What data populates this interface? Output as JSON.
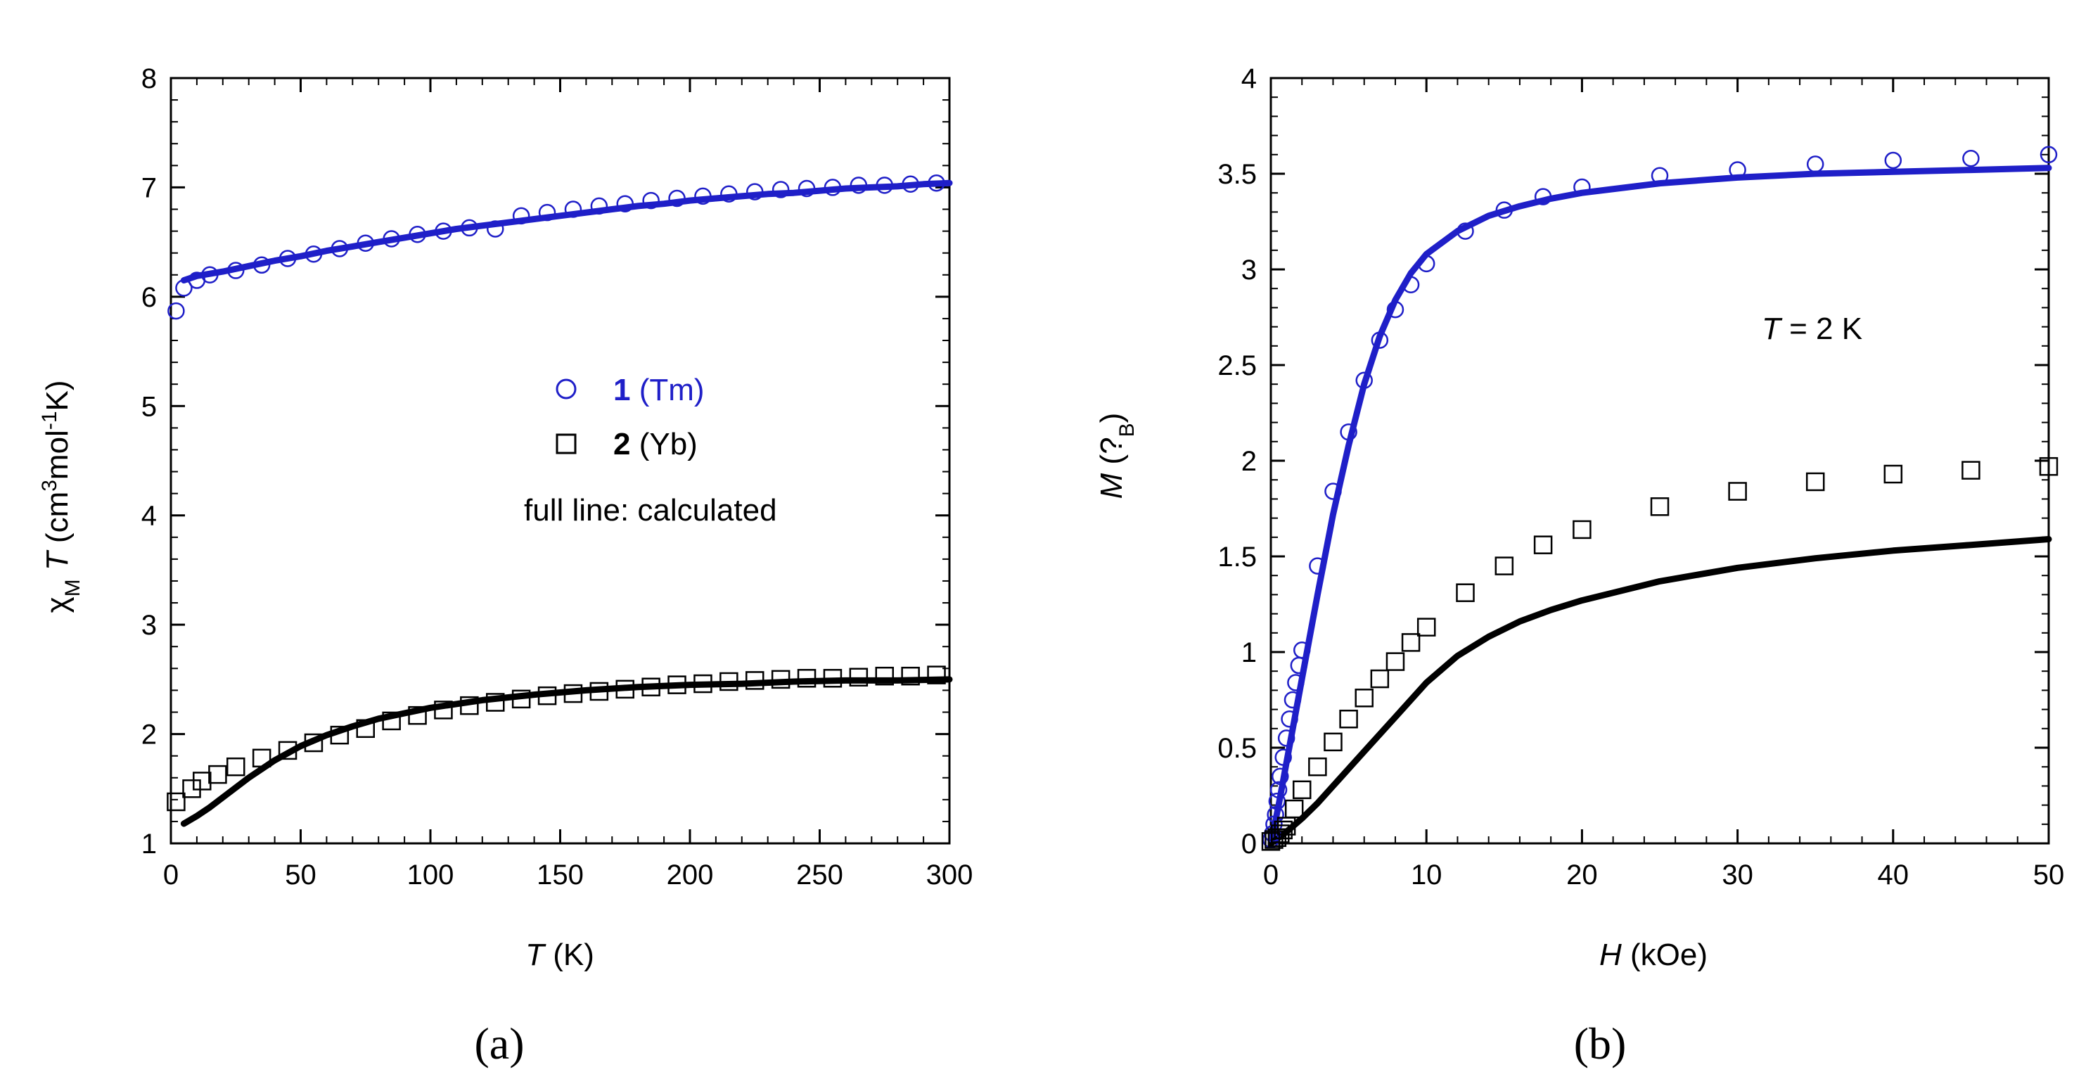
{
  "colors": {
    "tm": "#1f1fc8",
    "yb": "#000000"
  },
  "chart_data": [
    {
      "type": "scatter",
      "panel": "(a)",
      "xlabel": {
        "var": "T",
        "unit": " (K)"
      },
      "ylabel": {
        "prefix": "χ",
        "sub": "M",
        "var": " T",
        "unit_a": " (cm",
        "sup1": "3",
        "unit_b": "mol",
        "sup2": "-1",
        "unit_c": "K)"
      },
      "xlim": [
        0,
        300
      ],
      "ylim": [
        1,
        8
      ],
      "xticks": [
        0,
        50,
        100,
        150,
        200,
        250,
        300
      ],
      "yticks": [
        1,
        2,
        3,
        4,
        5,
        6,
        7,
        8
      ],
      "legend": {
        "entries": [
          {
            "num": "1",
            "text": " (Tm)",
            "marker": "circle",
            "series": "tm"
          },
          {
            "num": "2",
            "text": " (Yb)",
            "marker": "square",
            "series": "yb"
          }
        ],
        "note": "full line: calculated"
      },
      "series": [
        {
          "name": "1 (Tm) experimental",
          "color_key": "tm",
          "marker": "circle",
          "x": [
            2,
            5,
            10,
            15,
            25,
            35,
            45,
            55,
            65,
            75,
            85,
            95,
            105,
            115,
            125,
            135,
            145,
            155,
            165,
            175,
            185,
            195,
            205,
            215,
            225,
            235,
            245,
            255,
            265,
            275,
            285,
            295
          ],
          "y": [
            5.87,
            6.08,
            6.15,
            6.2,
            6.24,
            6.29,
            6.35,
            6.39,
            6.44,
            6.49,
            6.53,
            6.57,
            6.6,
            6.63,
            6.62,
            6.74,
            6.77,
            6.8,
            6.83,
            6.85,
            6.88,
            6.9,
            6.92,
            6.94,
            6.96,
            6.98,
            6.99,
            7.0,
            7.02,
            7.02,
            7.03,
            7.04
          ]
        },
        {
          "name": "1 (Tm) calculated",
          "color_key": "tm",
          "marker": "line",
          "x": [
            5,
            10,
            20,
            30,
            40,
            50,
            60,
            70,
            80,
            90,
            100,
            110,
            120,
            130,
            140,
            150,
            160,
            170,
            180,
            190,
            200,
            210,
            220,
            230,
            240,
            250,
            260,
            270,
            280,
            290,
            300
          ],
          "y": [
            6.15,
            6.19,
            6.23,
            6.28,
            6.33,
            6.37,
            6.42,
            6.46,
            6.5,
            6.54,
            6.58,
            6.62,
            6.65,
            6.68,
            6.71,
            6.74,
            6.77,
            6.8,
            6.83,
            6.85,
            6.88,
            6.9,
            6.92,
            6.94,
            6.95,
            6.97,
            6.99,
            7.0,
            7.01,
            7.03,
            7.04
          ]
        },
        {
          "name": "2 (Yb) experimental",
          "color_key": "yb",
          "marker": "square",
          "x": [
            2,
            8,
            12,
            18,
            25,
            35,
            45,
            55,
            65,
            75,
            85,
            95,
            105,
            115,
            125,
            135,
            145,
            155,
            165,
            175,
            185,
            195,
            205,
            215,
            225,
            235,
            245,
            255,
            265,
            275,
            285,
            295
          ],
          "y": [
            1.38,
            1.5,
            1.57,
            1.63,
            1.7,
            1.78,
            1.85,
            1.92,
            1.99,
            2.05,
            2.12,
            2.17,
            2.22,
            2.26,
            2.29,
            2.32,
            2.35,
            2.37,
            2.39,
            2.41,
            2.43,
            2.45,
            2.46,
            2.48,
            2.49,
            2.5,
            2.51,
            2.51,
            2.52,
            2.53,
            2.53,
            2.54
          ]
        },
        {
          "name": "2 (Yb) calculated",
          "color_key": "yb",
          "marker": "line",
          "x": [
            5,
            10,
            15,
            20,
            30,
            40,
            50,
            60,
            70,
            80,
            90,
            100,
            120,
            140,
            160,
            180,
            200,
            220,
            240,
            260,
            280,
            300
          ],
          "y": [
            1.18,
            1.25,
            1.33,
            1.42,
            1.6,
            1.76,
            1.89,
            1.99,
            2.07,
            2.14,
            2.19,
            2.24,
            2.31,
            2.36,
            2.4,
            2.43,
            2.45,
            2.46,
            2.48,
            2.49,
            2.49,
            2.5
          ]
        }
      ]
    },
    {
      "type": "scatter",
      "panel": "(b)",
      "xlabel": {
        "var": "H",
        "unit": " (kOe)"
      },
      "ylabel": {
        "var": "M",
        "unit_a": " (?",
        "sub": "B",
        "unit_b": ")"
      },
      "annotation": {
        "var": "T",
        "text": " = 2 K"
      },
      "xlim": [
        0,
        50
      ],
      "ylim": [
        0,
        4
      ],
      "xticks": [
        0,
        10,
        20,
        30,
        40,
        50
      ],
      "yticks": [
        0,
        0.5,
        1,
        1.5,
        2,
        2.5,
        3,
        3.5,
        4
      ],
      "series": [
        {
          "name": "1 (Tm) experimental",
          "color_key": "tm",
          "marker": "circle",
          "x": [
            0,
            0.1,
            0.2,
            0.3,
            0.4,
            0.5,
            0.6,
            0.8,
            1.0,
            1.2,
            1.4,
            1.6,
            1.8,
            2.0,
            3,
            4,
            5,
            6,
            7,
            8,
            9,
            10,
            12.5,
            15,
            17.5,
            20,
            25,
            30,
            35,
            40,
            45,
            50
          ],
          "y": [
            0.02,
            0.05,
            0.1,
            0.15,
            0.22,
            0.28,
            0.35,
            0.45,
            0.55,
            0.65,
            0.75,
            0.84,
            0.93,
            1.01,
            1.45,
            1.84,
            2.15,
            2.42,
            2.63,
            2.79,
            2.92,
            3.03,
            3.2,
            3.31,
            3.38,
            3.43,
            3.49,
            3.52,
            3.55,
            3.57,
            3.58,
            3.6
          ]
        },
        {
          "name": "1 (Tm) calculated",
          "color_key": "tm",
          "marker": "line",
          "x": [
            0,
            0.5,
            1,
            1.5,
            2,
            3,
            4,
            5,
            6,
            7,
            8,
            9,
            10,
            12,
            14,
            16,
            18,
            20,
            25,
            30,
            35,
            40,
            45,
            50
          ],
          "y": [
            0,
            0.2,
            0.42,
            0.64,
            0.86,
            1.3,
            1.72,
            2.08,
            2.4,
            2.65,
            2.84,
            2.98,
            3.08,
            3.2,
            3.28,
            3.33,
            3.37,
            3.4,
            3.45,
            3.48,
            3.5,
            3.51,
            3.52,
            3.53
          ]
        },
        {
          "name": "2 (Yb) experimental",
          "color_key": "yb",
          "marker": "square",
          "x": [
            0,
            0.2,
            0.4,
            0.6,
            0.8,
            1.0,
            1.5,
            2,
            3,
            4,
            5,
            6,
            7,
            8,
            9,
            10,
            12.5,
            15,
            17.5,
            20,
            25,
            30,
            35,
            40,
            45,
            50
          ],
          "y": [
            0.01,
            0.02,
            0.03,
            0.05,
            0.07,
            0.09,
            0.18,
            0.28,
            0.4,
            0.53,
            0.65,
            0.76,
            0.86,
            0.95,
            1.05,
            1.13,
            1.31,
            1.45,
            1.56,
            1.64,
            1.76,
            1.84,
            1.89,
            1.93,
            1.95,
            1.97
          ]
        },
        {
          "name": "2 (Yb) calculated",
          "color_key": "yb",
          "marker": "line",
          "x": [
            0,
            1,
            2,
            3,
            4,
            5,
            6,
            7,
            8,
            10,
            12,
            14,
            16,
            18,
            20,
            25,
            30,
            35,
            40,
            45,
            50
          ],
          "y": [
            0,
            0.06,
            0.13,
            0.21,
            0.3,
            0.39,
            0.48,
            0.57,
            0.66,
            0.84,
            0.98,
            1.08,
            1.16,
            1.22,
            1.27,
            1.37,
            1.44,
            1.49,
            1.53,
            1.56,
            1.59
          ]
        }
      ]
    }
  ]
}
